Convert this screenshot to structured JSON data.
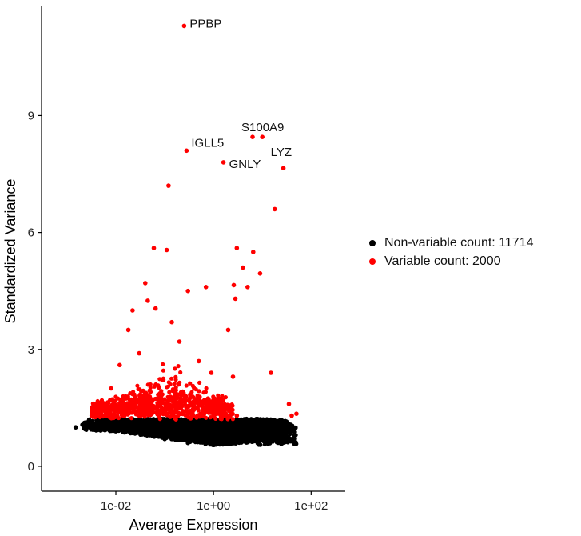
{
  "chart_data": {
    "type": "scatter",
    "xlabel": "Average Expression",
    "ylabel": "Standardized Variance",
    "x_scale": "log10",
    "xlim": [
      0.0003,
      500
    ],
    "ylim": [
      -0.35,
      11.8
    ],
    "x_ticks": [
      0.01,
      1,
      100
    ],
    "x_tick_labels": [
      "1e-02",
      "1e+00",
      "1e+02"
    ],
    "y_ticks": [
      0,
      3,
      6,
      9
    ],
    "y_tick_labels": [
      "0",
      "3",
      "6",
      "9"
    ],
    "grid": false,
    "legend_position": "right",
    "series": [
      {
        "name": "Non-variable count: 11714",
        "color": "#000000",
        "count": 11714,
        "points": [
          {
            "x": 0.0015,
            "y": 1.0
          },
          {
            "x": 0.0033,
            "y": 0.97
          },
          {
            "x": 0.004,
            "y": 0.95
          },
          {
            "x": 0.006,
            "y": 0.93
          },
          {
            "x": 0.01,
            "y": 0.9
          },
          {
            "x": 0.02,
            "y": 0.85
          },
          {
            "x": 0.05,
            "y": 0.8
          },
          {
            "x": 0.1,
            "y": 0.7
          },
          {
            "x": 0.3,
            "y": 0.6
          },
          {
            "x": 1.0,
            "y": 0.65
          },
          {
            "x": 3.0,
            "y": 0.7
          },
          {
            "x": 10.0,
            "y": 0.8
          },
          {
            "x": 20.0,
            "y": 0.95
          },
          {
            "x": 30.0,
            "y": 0.9
          }
        ]
      },
      {
        "name": "Variable count: 2000",
        "color": "#ff0000",
        "count": 2000,
        "points": [
          {
            "x": 0.25,
            "y": 11.3,
            "label": "PPBP"
          },
          {
            "x": 6.3,
            "y": 8.45,
            "label": "S100A9"
          },
          {
            "x": 10.0,
            "y": 8.45
          },
          {
            "x": 0.28,
            "y": 8.1,
            "label": "IGLL5"
          },
          {
            "x": 1.6,
            "y": 7.8,
            "label": "GNLY"
          },
          {
            "x": 27.0,
            "y": 7.65,
            "label": "LYZ"
          },
          {
            "x": 0.12,
            "y": 7.2
          },
          {
            "x": 18.0,
            "y": 6.6
          },
          {
            "x": 0.06,
            "y": 5.6
          },
          {
            "x": 0.11,
            "y": 5.55
          },
          {
            "x": 3.0,
            "y": 5.6
          },
          {
            "x": 6.5,
            "y": 5.5
          },
          {
            "x": 4.0,
            "y": 5.1
          },
          {
            "x": 9.0,
            "y": 4.95
          },
          {
            "x": 0.04,
            "y": 4.7
          },
          {
            "x": 0.7,
            "y": 4.6
          },
          {
            "x": 2.6,
            "y": 4.65
          },
          {
            "x": 5.0,
            "y": 4.6
          },
          {
            "x": 0.3,
            "y": 4.5
          },
          {
            "x": 2.8,
            "y": 4.3
          },
          {
            "x": 0.045,
            "y": 4.25
          },
          {
            "x": 0.065,
            "y": 4.05
          },
          {
            "x": 0.022,
            "y": 4.0
          },
          {
            "x": 0.018,
            "y": 3.5
          },
          {
            "x": 0.14,
            "y": 3.7
          },
          {
            "x": 0.2,
            "y": 3.2
          },
          {
            "x": 2.0,
            "y": 3.5
          },
          {
            "x": 2.5,
            "y": 2.3
          },
          {
            "x": 15.0,
            "y": 2.4
          },
          {
            "x": 0.005,
            "y": 1.3
          },
          {
            "x": 0.008,
            "y": 2.0
          },
          {
            "x": 0.012,
            "y": 2.6
          },
          {
            "x": 0.03,
            "y": 2.9
          },
          {
            "x": 0.5,
            "y": 2.7
          },
          {
            "x": 0.9,
            "y": 2.4
          },
          {
            "x": 1.2,
            "y": 1.7
          },
          {
            "x": 3.0,
            "y": 1.3
          },
          {
            "x": 35.0,
            "y": 1.6
          },
          {
            "x": 40.0,
            "y": 1.3
          },
          {
            "x": 50.0,
            "y": 1.35
          }
        ]
      }
    ],
    "annotations": [
      "PPBP",
      "S100A9",
      "IGLL5",
      "GNLY",
      "LYZ"
    ]
  }
}
